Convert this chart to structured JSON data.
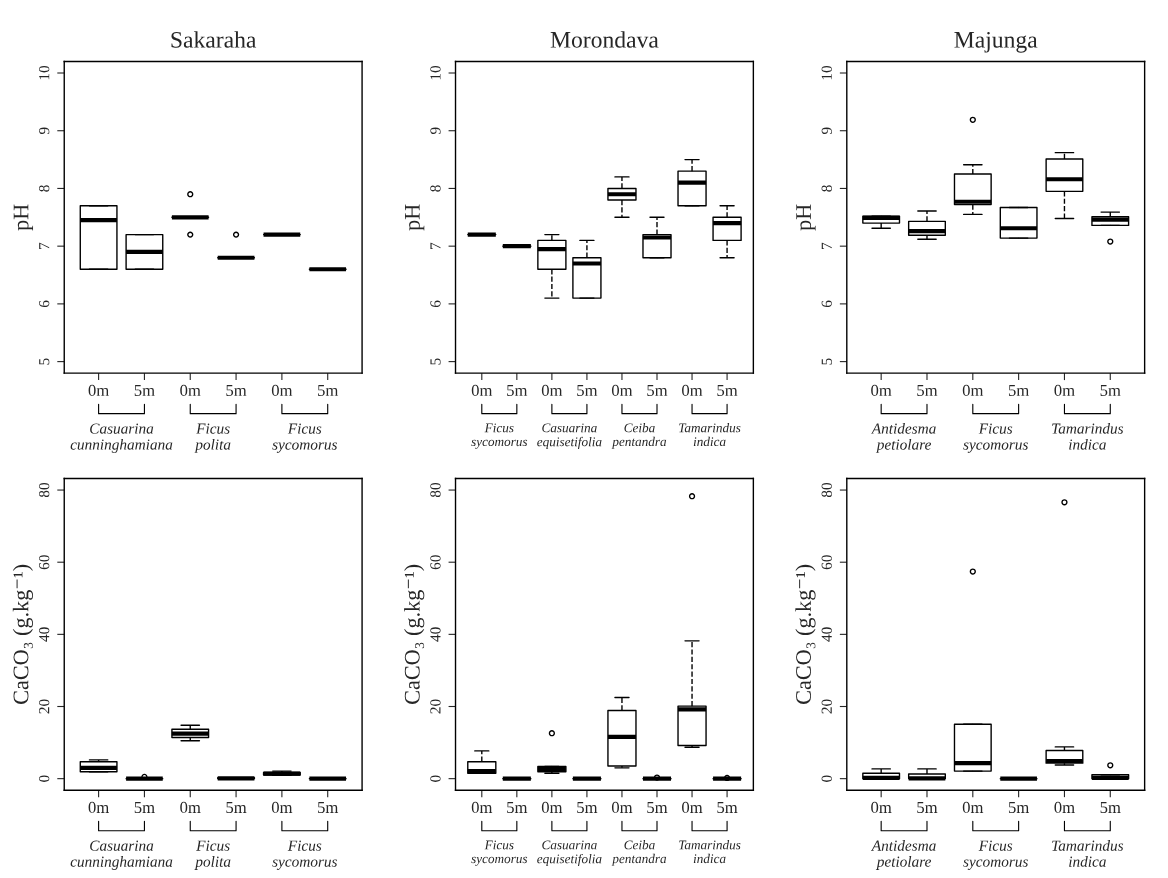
{
  "chart_data": [
    {
      "type": "box",
      "title": "Sakaraha",
      "ylabel": "pH",
      "categories": [
        "0m",
        "5m",
        "0m",
        "5m",
        "0m",
        "5m"
      ],
      "ylim": [
        4.8,
        10.2
      ],
      "yticks": [
        5,
        6,
        7,
        8,
        9,
        10
      ],
      "grid": false,
      "annotations": [
        "Casuarina\ncunninghamiana",
        "Ficus\npolita",
        "Ficus\nsycomorus"
      ],
      "boxes": [
        {
          "low": 6.6,
          "q1": 6.6,
          "median": 7.45,
          "q3": 7.7,
          "high": 7.7
        },
        {
          "low": 6.6,
          "q1": 6.6,
          "median": 6.9,
          "q3": 7.2,
          "high": 7.2
        },
        {
          "low": 7.5,
          "q1": 7.5,
          "median": 7.5,
          "q3": 7.5,
          "high": 7.5,
          "outliers": [
            7.9,
            7.2
          ]
        },
        {
          "low": 6.8,
          "q1": 6.8,
          "median": 6.8,
          "q3": 6.8,
          "high": 6.8,
          "outliers": [
            7.2
          ]
        },
        {
          "low": 7.2,
          "q1": 7.2,
          "median": 7.2,
          "q3": 7.2,
          "high": 7.2
        },
        {
          "low": 6.6,
          "q1": 6.6,
          "median": 6.6,
          "q3": 6.6,
          "high": 6.6
        }
      ]
    },
    {
      "type": "box",
      "title": "Morondava",
      "ylabel": "pH",
      "categories": [
        "0m",
        "5m",
        "0m",
        "5m",
        "0m",
        "5m",
        "0m",
        "5m"
      ],
      "ylim": [
        4.8,
        10.2
      ],
      "yticks": [
        5,
        6,
        7,
        8,
        9,
        10
      ],
      "grid": false,
      "annotations": [
        "Ficus\nsycomorus",
        "Casuarina\nequisetifolia",
        "Ceiba\npentandra",
        "Tamarindus\nindica"
      ],
      "boxes": [
        {
          "low": 7.2,
          "q1": 7.2,
          "median": 7.2,
          "q3": 7.2,
          "high": 7.2
        },
        {
          "low": 7.0,
          "q1": 7.0,
          "median": 7.0,
          "q3": 7.0,
          "high": 7.0
        },
        {
          "low": 6.1,
          "q1": 6.6,
          "median": 6.95,
          "q3": 7.1,
          "high": 7.2
        },
        {
          "low": 6.1,
          "q1": 6.1,
          "median": 6.7,
          "q3": 6.8,
          "high": 7.1
        },
        {
          "low": 7.5,
          "q1": 7.8,
          "median": 7.9,
          "q3": 8.0,
          "high": 8.2
        },
        {
          "low": 6.8,
          "q1": 6.8,
          "median": 7.15,
          "q3": 7.2,
          "high": 7.5
        },
        {
          "low": 7.7,
          "q1": 7.7,
          "median": 8.1,
          "q3": 8.3,
          "high": 8.5
        },
        {
          "low": 6.8,
          "q1": 7.1,
          "median": 7.4,
          "q3": 7.5,
          "high": 7.7
        }
      ]
    },
    {
      "type": "box",
      "title": "Majunga",
      "ylabel": "pH",
      "categories": [
        "0m",
        "5m",
        "0m",
        "5m",
        "0m",
        "5m"
      ],
      "ylim": [
        4.8,
        10.2
      ],
      "yticks": [
        5,
        6,
        7,
        8,
        9,
        10
      ],
      "grid": false,
      "annotations": [
        "Antidesma\npetiolare",
        "Ficus\nsycomorus",
        "Tamarindus\nindica"
      ],
      "boxes": [
        {
          "low": 7.31,
          "q1": 7.4,
          "median": 7.49,
          "q3": 7.52,
          "high": 7.52
        },
        {
          "low": 7.12,
          "q1": 7.19,
          "median": 7.26,
          "q3": 7.43,
          "high": 7.61
        },
        {
          "low": 7.55,
          "q1": 7.72,
          "median": 7.77,
          "q3": 8.25,
          "high": 8.41,
          "outliers": [
            9.19
          ]
        },
        {
          "low": 7.14,
          "q1": 7.14,
          "median": 7.31,
          "q3": 7.67,
          "high": 7.67
        },
        {
          "low": 7.48,
          "q1": 7.95,
          "median": 8.16,
          "q3": 8.51,
          "high": 8.62
        },
        {
          "low": 7.36,
          "q1": 7.36,
          "median": 7.46,
          "q3": 7.51,
          "high": 7.59,
          "outliers": [
            7.08
          ]
        }
      ]
    },
    {
      "type": "box",
      "ylabel": "CaCO₃ (g.kg⁻¹)",
      "categories": [
        "0m",
        "5m",
        "0m",
        "5m",
        "0m",
        "5m"
      ],
      "ylim": [
        -3.2,
        83.2
      ],
      "yticks": [
        0,
        20,
        40,
        60,
        80
      ],
      "grid": false,
      "annotations": [
        "Casuarina\ncunninghamiana",
        "Ficus\npolita",
        "Ficus\nsycomorus"
      ],
      "boxes": [
        {
          "low": 1.9,
          "q1": 1.9,
          "median": 3.0,
          "q3": 4.7,
          "high": 5.2
        },
        {
          "low": 0,
          "q1": 0,
          "median": 0,
          "q3": 0,
          "high": 0,
          "outliers": [
            0.5
          ]
        },
        {
          "low": 10.5,
          "q1": 11.4,
          "median": 12.5,
          "q3": 13.7,
          "high": 14.8
        },
        {
          "low": 0,
          "q1": 0,
          "median": 0.1,
          "q3": 0.3,
          "high": 0.3
        },
        {
          "low": 0.9,
          "q1": 1.0,
          "median": 1.4,
          "q3": 1.7,
          "high": 2.1
        },
        {
          "low": 0,
          "q1": 0,
          "median": 0,
          "q3": 0,
          "high": 0
        }
      ]
    },
    {
      "type": "box",
      "ylabel": "CaCO₃ (g.kg⁻¹)",
      "categories": [
        "0m",
        "5m",
        "0m",
        "5m",
        "0m",
        "5m",
        "0m",
        "5m"
      ],
      "ylim": [
        -3.2,
        83.2
      ],
      "yticks": [
        0,
        20,
        40,
        60,
        80
      ],
      "grid": false,
      "annotations": [
        "Ficus\nsycomorus",
        "Casuarina\nequisetifolia",
        "Ceiba\npentandra",
        "Tamarindus\nindica"
      ],
      "boxes": [
        {
          "low": 1.5,
          "q1": 1.5,
          "median": 2.1,
          "q3": 4.7,
          "high": 7.7
        },
        {
          "low": 0,
          "q1": 0,
          "median": 0,
          "q3": 0,
          "high": 0
        },
        {
          "low": 1.5,
          "q1": 1.9,
          "median": 2.7,
          "q3": 3.4,
          "high": 3.4,
          "outliers": [
            12.6
          ]
        },
        {
          "low": 0,
          "q1": 0,
          "median": 0,
          "q3": 0,
          "high": 0
        },
        {
          "low": 3.0,
          "q1": 3.5,
          "median": 11.6,
          "q3": 18.9,
          "high": 22.5
        },
        {
          "low": 0,
          "q1": 0,
          "median": 0,
          "q3": 0,
          "high": 0,
          "outliers": [
            0.3
          ]
        },
        {
          "low": 8.7,
          "q1": 9.2,
          "median": 19.2,
          "q3": 20.1,
          "high": 38.2,
          "outliers": [
            78.3
          ]
        },
        {
          "low": 0,
          "q1": 0,
          "median": 0,
          "q3": 0,
          "high": 0,
          "outliers": [
            0.2
          ]
        }
      ]
    },
    {
      "type": "box",
      "ylabel": "CaCO₃ (g.kg⁻¹)",
      "categories": [
        "0m",
        "5m",
        "0m",
        "5m",
        "0m",
        "5m"
      ],
      "ylim": [
        -3.2,
        83.2
      ],
      "yticks": [
        0,
        20,
        40,
        60,
        80
      ],
      "grid": false,
      "annotations": [
        "Antidesma\npetiolare",
        "Ficus\nsycomorus",
        "Tamarindus\nindica"
      ],
      "boxes": [
        {
          "low": 0,
          "q1": 0,
          "median": 0.2,
          "q3": 1.5,
          "high": 2.7
        },
        {
          "low": 0,
          "q1": 0,
          "median": 0.1,
          "q3": 1.3,
          "high": 2.7
        },
        {
          "low": 2.1,
          "q1": 2.1,
          "median": 4.3,
          "q3": 15.1,
          "high": 15.1,
          "outliers": [
            57.4
          ]
        },
        {
          "low": 0,
          "q1": 0,
          "median": 0,
          "q3": 0,
          "high": 0
        },
        {
          "low": 3.8,
          "q1": 4.3,
          "median": 4.9,
          "q3": 7.8,
          "high": 8.8,
          "outliers": [
            76.6
          ]
        },
        {
          "low": 0,
          "q1": 0,
          "median": 0.2,
          "q3": 1.1,
          "high": 1.1,
          "outliers": [
            3.7
          ]
        }
      ]
    }
  ]
}
